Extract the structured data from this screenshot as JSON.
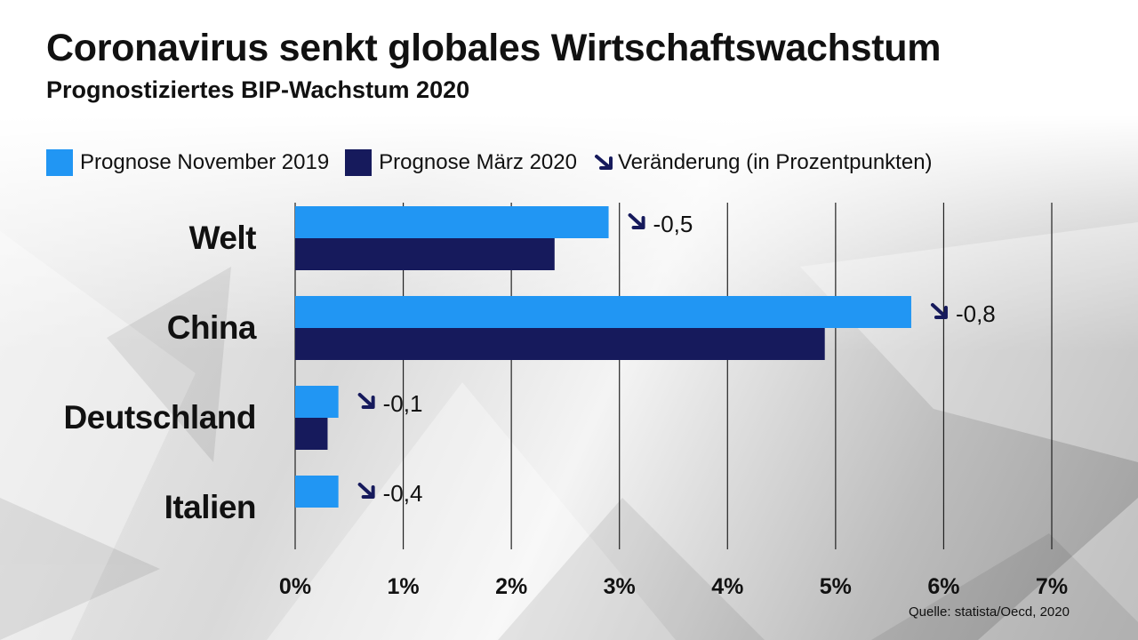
{
  "title": "Coronavirus senkt globales Wirtschaftswachstum",
  "subtitle": "Prognostiziertes BIP-Wachstum 2020",
  "legend": {
    "nov": "Prognose November 2019",
    "mar": "Prognose März 2020",
    "change": "Veränderung (in Prozentpunkten)"
  },
  "source": "Quelle: statista/Oecd, 2020",
  "colors": {
    "nov": "#2196f3",
    "mar": "#161a5c",
    "arrow": "#161a5c"
  },
  "chart_data": {
    "type": "bar",
    "orientation": "horizontal",
    "title": "Coronavirus senkt globales Wirtschaftswachstum",
    "subtitle": "Prognostiziertes BIP-Wachstum 2020",
    "categories": [
      "Welt",
      "China",
      "Deutschland",
      "Italien"
    ],
    "series": [
      {
        "name": "Prognose November 2019",
        "values": [
          2.9,
          5.7,
          0.4,
          0.4
        ]
      },
      {
        "name": "Prognose März 2020",
        "values": [
          2.4,
          4.9,
          0.3,
          0.0
        ]
      }
    ],
    "changes": [
      "-0,5",
      "-0,8",
      "-0,1",
      "-0,4"
    ],
    "xlim": [
      0,
      7
    ],
    "x_ticks": [
      "0%",
      "1%",
      "2%",
      "3%",
      "4%",
      "5%",
      "6%",
      "7%"
    ],
    "grid": true,
    "legend_position": "top"
  }
}
